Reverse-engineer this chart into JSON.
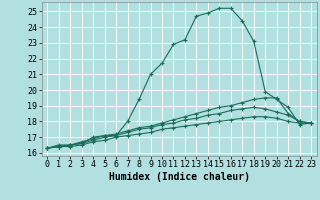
{
  "xlabel": "Humidex (Indice chaleur)",
  "bg_color": "#b2dfdf",
  "grid_color": "#ffffff",
  "line_color": "#1a6b5a",
  "xlim": [
    -0.5,
    23.5
  ],
  "ylim": [
    15.8,
    25.6
  ],
  "yticks": [
    16,
    17,
    18,
    19,
    20,
    21,
    22,
    23,
    24,
    25
  ],
  "xticks": [
    0,
    1,
    2,
    3,
    4,
    5,
    6,
    7,
    8,
    9,
    10,
    11,
    12,
    13,
    14,
    15,
    16,
    17,
    18,
    19,
    20,
    21,
    22,
    23
  ],
  "line1_x": [
    0,
    1,
    2,
    3,
    4,
    5,
    6,
    7,
    8,
    9,
    10,
    11,
    12,
    13,
    14,
    15,
    16,
    17,
    18,
    19,
    20,
    21,
    22,
    23
  ],
  "line1_y": [
    16.3,
    16.5,
    16.5,
    16.6,
    17.0,
    17.1,
    17.1,
    18.0,
    19.4,
    21.0,
    21.7,
    22.9,
    23.2,
    24.7,
    24.9,
    25.2,
    25.2,
    24.4,
    23.1,
    19.9,
    19.4,
    18.9,
    17.8,
    17.9
  ],
  "line2_x": [
    0,
    1,
    2,
    3,
    4,
    5,
    6,
    7,
    8,
    9,
    10,
    11,
    12,
    13,
    14,
    15,
    16,
    17,
    18,
    19,
    20,
    21,
    22,
    23
  ],
  "line2_y": [
    16.3,
    16.4,
    16.5,
    16.7,
    16.9,
    17.1,
    17.2,
    17.4,
    17.6,
    17.7,
    17.9,
    18.1,
    18.3,
    18.5,
    18.7,
    18.9,
    19.0,
    19.2,
    19.4,
    19.5,
    19.5,
    18.5,
    18.0,
    17.9
  ],
  "line3_x": [
    0,
    1,
    2,
    3,
    4,
    5,
    6,
    7,
    8,
    9,
    10,
    11,
    12,
    13,
    14,
    15,
    16,
    17,
    18,
    19,
    20,
    21,
    22,
    23
  ],
  "line3_y": [
    16.3,
    16.4,
    16.5,
    16.6,
    16.8,
    17.0,
    17.1,
    17.3,
    17.5,
    17.6,
    17.8,
    17.9,
    18.1,
    18.2,
    18.4,
    18.5,
    18.7,
    18.8,
    18.9,
    18.8,
    18.6,
    18.4,
    18.0,
    17.9
  ],
  "line4_x": [
    0,
    1,
    2,
    3,
    4,
    5,
    6,
    7,
    8,
    9,
    10,
    11,
    12,
    13,
    14,
    15,
    16,
    17,
    18,
    19,
    20,
    21,
    22,
    23
  ],
  "line4_y": [
    16.3,
    16.4,
    16.4,
    16.5,
    16.7,
    16.8,
    17.0,
    17.1,
    17.2,
    17.3,
    17.5,
    17.6,
    17.7,
    17.8,
    17.9,
    18.0,
    18.1,
    18.2,
    18.3,
    18.3,
    18.2,
    18.0,
    17.9,
    17.9
  ],
  "tick_fontsize": 6,
  "xlabel_fontsize": 7
}
